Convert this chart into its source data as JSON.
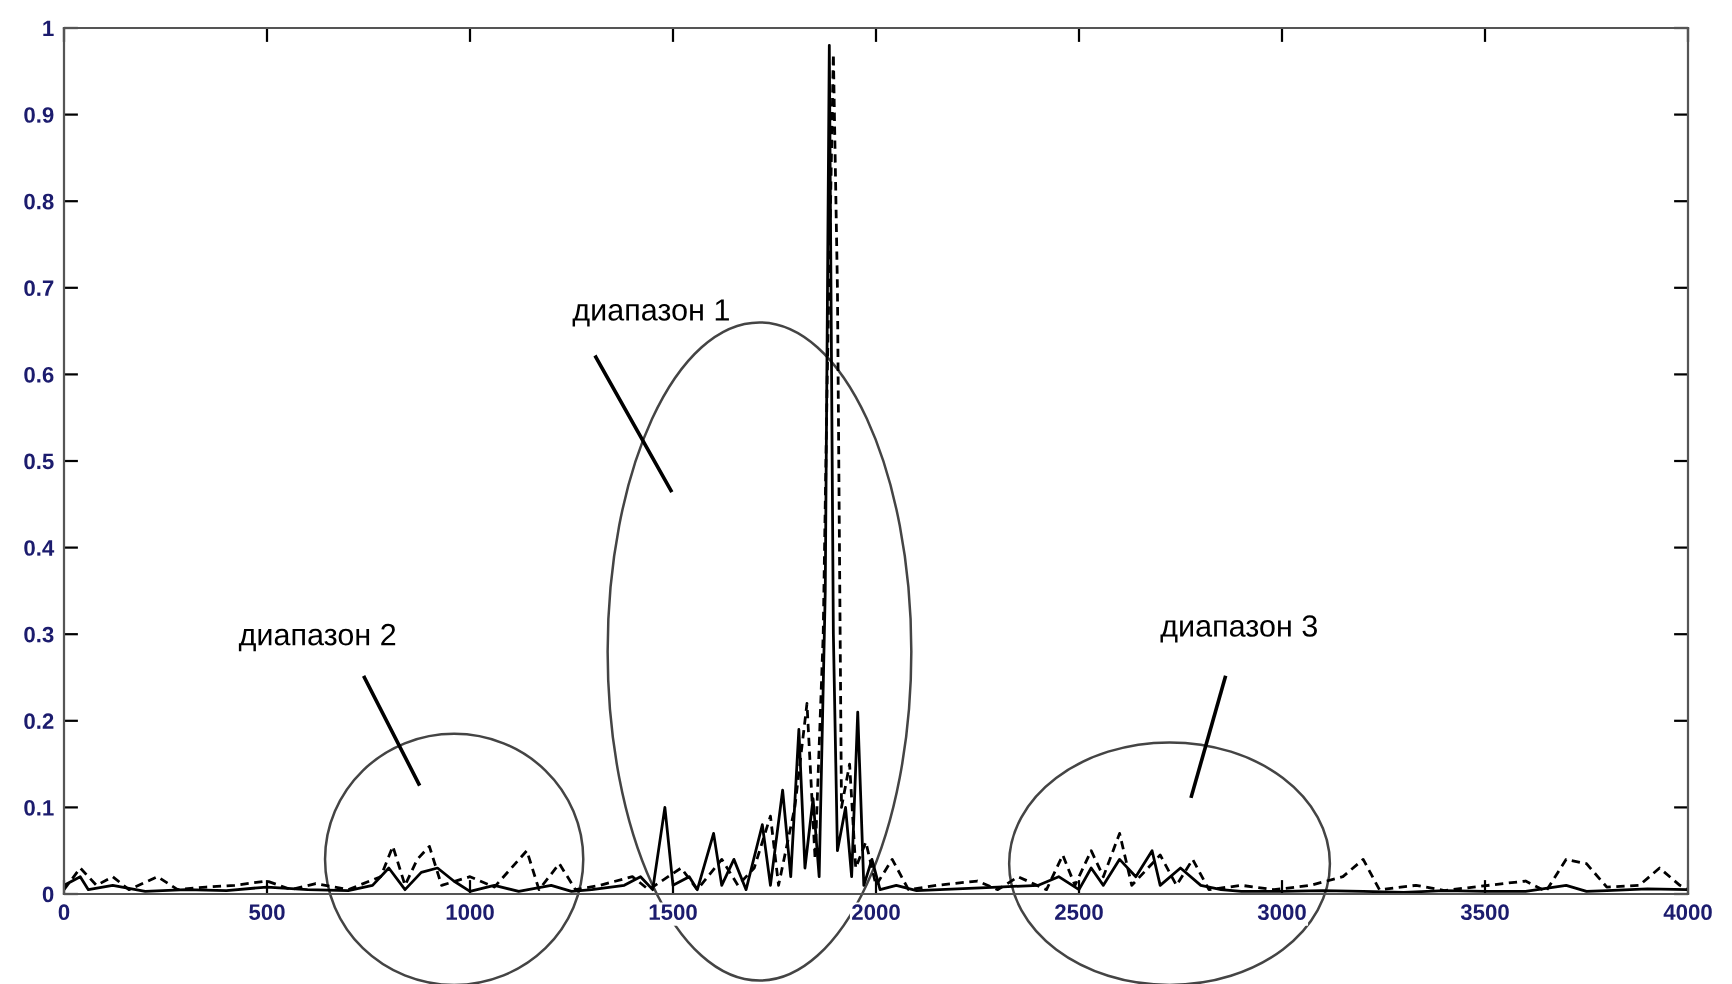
{
  "chart_data": {
    "type": "line",
    "xlim": [
      0,
      4000
    ],
    "ylim": [
      0,
      1
    ],
    "xticks": [
      0,
      500,
      1000,
      1500,
      2000,
      2500,
      3000,
      3500,
      4000
    ],
    "yticks": [
      0,
      0.1,
      0.2,
      0.3,
      0.4,
      0.5,
      0.6,
      0.7,
      0.8,
      0.9,
      1
    ],
    "grid": false,
    "annotations": [
      "диапазон 1",
      "диапазон 2",
      "диапазон 3"
    ],
    "series": [
      {
        "color": "#000000",
        "line_style": "solid",
        "x": [
          0,
          40,
          60,
          120,
          200,
          300,
          400,
          500,
          600,
          700,
          760,
          800,
          840,
          880,
          920,
          960,
          1000,
          1060,
          1120,
          1200,
          1250,
          1300,
          1380,
          1420,
          1450,
          1480,
          1500,
          1540,
          1560,
          1600,
          1620,
          1650,
          1680,
          1720,
          1740,
          1770,
          1790,
          1810,
          1825,
          1845,
          1860,
          1875,
          1885,
          1895,
          1905,
          1925,
          1940,
          1955,
          1970,
          1990,
          2010,
          2050,
          2100,
          2200,
          2300,
          2400,
          2450,
          2500,
          2530,
          2560,
          2600,
          2640,
          2680,
          2700,
          2750,
          2800,
          2850,
          2900,
          3000,
          3100,
          3200,
          3300,
          3400,
          3500,
          3600,
          3700,
          3750,
          3800,
          3900,
          4000
        ],
        "values": [
          0.01,
          0.02,
          0.005,
          0.01,
          0.003,
          0.005,
          0.004,
          0.008,
          0.005,
          0.004,
          0.01,
          0.03,
          0.005,
          0.025,
          0.03,
          0.015,
          0.003,
          0.01,
          0.003,
          0.01,
          0.003,
          0.005,
          0.01,
          0.02,
          0.005,
          0.1,
          0.01,
          0.02,
          0.005,
          0.07,
          0.01,
          0.04,
          0.005,
          0.08,
          0.01,
          0.12,
          0.02,
          0.19,
          0.03,
          0.11,
          0.02,
          0.35,
          0.98,
          0.3,
          0.05,
          0.1,
          0.02,
          0.21,
          0.01,
          0.04,
          0.005,
          0.01,
          0.004,
          0.006,
          0.008,
          0.01,
          0.02,
          0.005,
          0.03,
          0.01,
          0.04,
          0.02,
          0.05,
          0.01,
          0.03,
          0.01,
          0.005,
          0.003,
          0.003,
          0.004,
          0.003,
          0.002,
          0.004,
          0.003,
          0.003,
          0.01,
          0.003,
          0.004,
          0.006,
          0.005
        ]
      },
      {
        "color": "#000000",
        "line_style": "dashed",
        "x": [
          0,
          40,
          80,
          120,
          160,
          230,
          280,
          350,
          420,
          500,
          560,
          620,
          700,
          780,
          810,
          840,
          870,
          900,
          930,
          1000,
          1060,
          1140,
          1170,
          1220,
          1260,
          1320,
          1400,
          1440,
          1520,
          1560,
          1620,
          1660,
          1700,
          1740,
          1760,
          1800,
          1830,
          1850,
          1870,
          1880,
          1895,
          1905,
          1915,
          1935,
          1950,
          1975,
          2000,
          2040,
          2080,
          2150,
          2250,
          2300,
          2350,
          2420,
          2460,
          2490,
          2530,
          2560,
          2600,
          2630,
          2700,
          2740,
          2780,
          2820,
          2900,
          2980,
          3070,
          3150,
          3200,
          3240,
          3330,
          3400,
          3600,
          3650,
          3700,
          3750,
          3800,
          3880,
          3930,
          3980,
          4000
        ],
        "values": [
          0.005,
          0.03,
          0.01,
          0.02,
          0.005,
          0.02,
          0.005,
          0.008,
          0.01,
          0.015,
          0.005,
          0.012,
          0.005,
          0.02,
          0.055,
          0.01,
          0.04,
          0.055,
          0.01,
          0.02,
          0.008,
          0.05,
          0.005,
          0.035,
          0.005,
          0.01,
          0.02,
          0.005,
          0.03,
          0.005,
          0.04,
          0.01,
          0.03,
          0.09,
          0.01,
          0.1,
          0.22,
          0.04,
          0.3,
          0.6,
          0.97,
          0.7,
          0.1,
          0.15,
          0.03,
          0.06,
          0.01,
          0.04,
          0.005,
          0.01,
          0.015,
          0.005,
          0.02,
          0.005,
          0.045,
          0.01,
          0.05,
          0.02,
          0.07,
          0.01,
          0.045,
          0.01,
          0.04,
          0.005,
          0.01,
          0.005,
          0.01,
          0.02,
          0.04,
          0.005,
          0.01,
          0.004,
          0.015,
          0.003,
          0.04,
          0.035,
          0.008,
          0.01,
          0.03,
          0.01,
          0.005
        ]
      }
    ]
  }
}
